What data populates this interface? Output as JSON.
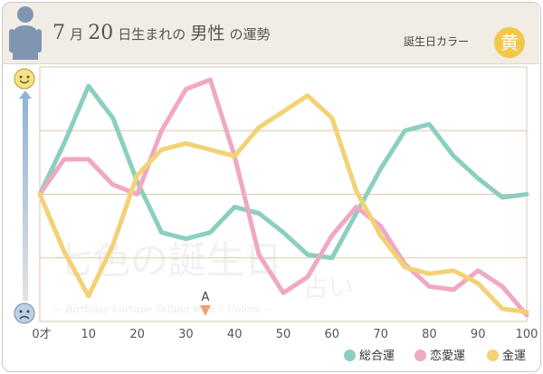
{
  "header": {
    "title_parts": [
      "7",
      "月",
      "20",
      "日生まれの",
      "男性",
      "の運勢"
    ],
    "birthday_color_label": "誕生日カラー",
    "birthday_color_char": "黄"
  },
  "colors": {
    "overall": "#8ccfc0",
    "love": "#f0a8c4",
    "money": "#f3d275",
    "grid": "#d9c9a8",
    "axis_text": "#555555"
  },
  "marker": {
    "label": "A",
    "x": 34
  },
  "watermark": {
    "main": "七色の誕生日",
    "sub": "占い",
    "tagline": "— Birthday Fortune Telling with 7 Colors —"
  },
  "chart_data": {
    "type": "line",
    "x": [
      0,
      5,
      10,
      15,
      20,
      25,
      30,
      35,
      40,
      45,
      50,
      55,
      60,
      65,
      70,
      75,
      80,
      85,
      90,
      95,
      100
    ],
    "x_tick_labels": [
      "0才",
      "10",
      "20",
      "30",
      "40",
      "50",
      "60",
      "70",
      "80",
      "90",
      "100"
    ],
    "x_ticks": [
      0,
      10,
      20,
      30,
      40,
      50,
      60,
      70,
      80,
      90,
      100
    ],
    "xlim": [
      0,
      100
    ],
    "ylim": [
      -2,
      2
    ],
    "grid": true,
    "legend_position": "bottom-right",
    "series": [
      {
        "name": "総合運",
        "key": "overall",
        "values": [
          0,
          0.8,
          1.7,
          1.2,
          0.2,
          -0.6,
          -0.7,
          -0.6,
          -0.2,
          -0.3,
          -0.6,
          -0.95,
          -1.0,
          -0.3,
          0.4,
          1.0,
          1.1,
          0.6,
          0.25,
          -0.05,
          0
        ]
      },
      {
        "name": "恋愛運",
        "key": "love",
        "values": [
          0,
          0.55,
          0.55,
          0.15,
          0.0,
          1.0,
          1.65,
          1.8,
          0.6,
          -0.95,
          -1.55,
          -1.3,
          -0.65,
          -0.2,
          -0.5,
          -1.1,
          -1.45,
          -1.5,
          -1.2,
          -1.45,
          -1.9
        ]
      },
      {
        "name": "金運",
        "key": "money",
        "values": [
          0,
          -0.9,
          -1.6,
          -0.8,
          0.3,
          0.7,
          0.8,
          0.7,
          0.6,
          1.05,
          1.3,
          1.55,
          1.2,
          0.05,
          -0.65,
          -1.15,
          -1.25,
          -1.2,
          -1.4,
          -1.8,
          -1.85
        ]
      }
    ]
  }
}
